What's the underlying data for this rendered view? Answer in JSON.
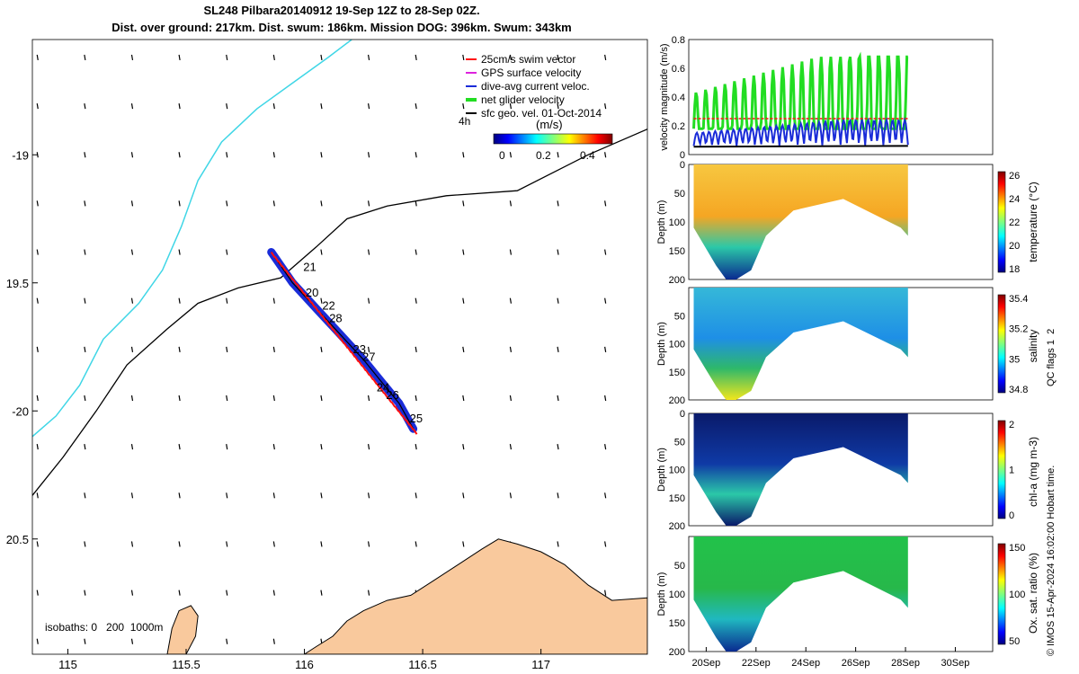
{
  "title": {
    "line1": "SL248 Pilbara20140912 19-Sep 12Z to 28-Sep 02Z.",
    "line2": "Dist. over ground: 217km. Dist. swum: 186km. Mission DOG: 396km. Swum: 343km"
  },
  "colors": {
    "coast_fill": "#f9c99d",
    "contour_200": "#000000",
    "contour_1000": "#3fd6e6",
    "track_blue": "#1a2cd8",
    "track_red": "#ff1010",
    "panel_green": "#22dd22"
  },
  "map": {
    "xticks": [
      {
        "v": 115,
        "label": "115"
      },
      {
        "v": 115.5,
        "label": "115.5"
      },
      {
        "v": 116,
        "label": "116"
      },
      {
        "v": 116.5,
        "label": "116.5"
      },
      {
        "v": 117,
        "label": "117"
      }
    ],
    "yticks": [
      {
        "v": -19,
        "label": "-19"
      },
      {
        "v": -19.5,
        "label": "19.5"
      },
      {
        "v": -20,
        "label": "-20"
      },
      {
        "v": -20.5,
        "label": "20.5"
      }
    ],
    "xlim": [
      114.85,
      117.45
    ],
    "ylim": [
      -20.95,
      -18.55
    ],
    "legend": [
      {
        "label": "25cm/s swim vector",
        "color": "#ff1010"
      },
      {
        "label": "GPS surface velocity",
        "color": "#dd22dd"
      },
      {
        "label": "dive-avg current veloc.",
        "color": "#1a2cd8"
      },
      {
        "label": "net glider velocity",
        "color": "#22dd22"
      },
      {
        "label": "sfc geo. vel. 01-Oct-2014",
        "color": "#000000"
      }
    ],
    "interval_label": "4h",
    "colorbar_title": "(m/s)",
    "colorbar_ticks": [
      "0",
      "0.2",
      "0.4"
    ],
    "isobath_label": "isobaths: 0   200  1000m",
    "day_labels": [
      {
        "t": "21",
        "lon": 115.98,
        "lat": -19.44
      },
      {
        "t": "20",
        "lon": 115.99,
        "lat": -19.54
      },
      {
        "t": "22",
        "lon": 116.06,
        "lat": -19.59
      },
      {
        "t": "28",
        "lon": 116.09,
        "lat": -19.64
      },
      {
        "t": "23",
        "lon": 116.19,
        "lat": -19.76
      },
      {
        "t": "27",
        "lon": 116.23,
        "lat": -19.79
      },
      {
        "t": "24",
        "lon": 116.29,
        "lat": -19.91
      },
      {
        "t": "26",
        "lon": 116.33,
        "lat": -19.94
      },
      {
        "t": "25",
        "lon": 116.43,
        "lat": -20.03
      }
    ]
  },
  "chart_data": [
    {
      "type": "line",
      "ylabel": "velocity magnitude (m/s)",
      "ylim": [
        0,
        0.8
      ],
      "yticks": [
        "0",
        "0.2",
        "0.4",
        "0.6",
        "0.8"
      ],
      "series": [
        {
          "name": "net glider velocity",
          "color": "#22dd22"
        },
        {
          "name": "dive-avg current veloc.",
          "color": "#1a2cd8"
        },
        {
          "name": "25cm/s swim vector",
          "color": "#ff1010"
        },
        {
          "name": "sfc geo. vel. 01-Oct-2014",
          "color": "#000000"
        }
      ]
    },
    {
      "type": "heatmap",
      "ylabel": "Depth (m)",
      "clabel": "temperature (°C)",
      "cticks": [
        "18",
        "20",
        "22",
        "24",
        "26"
      ],
      "yticks": [
        "0",
        "50",
        "100",
        "150",
        "200"
      ]
    },
    {
      "type": "heatmap",
      "ylabel": "Depth (m)",
      "clabel": "salinity",
      "cticks": [
        "34.8",
        "35",
        "35.2",
        "35.4"
      ],
      "yticks": [
        "50",
        "100",
        "150",
        "200"
      ]
    },
    {
      "type": "heatmap",
      "ylabel": "Depth (m)",
      "clabel": "chl-a (mg m-3)",
      "cticks": [
        "0",
        "1",
        "2"
      ],
      "yticks": [
        "0",
        "50",
        "100",
        "150",
        "200"
      ]
    },
    {
      "type": "heatmap",
      "ylabel": "Depth (m)",
      "clabel": "Ox. sat. ratio (%)",
      "cticks": [
        "50",
        "100",
        "150"
      ],
      "yticks": [
        "50",
        "100",
        "150",
        "200"
      ],
      "xticks": [
        "20Sep",
        "22Sep",
        "24Sep",
        "26Sep",
        "28Sep",
        "30Sep"
      ]
    }
  ],
  "qc_label": "QC flags 1  2",
  "footer": "© IMOS 15-Apr-2024 16:02:00 Hobart time."
}
